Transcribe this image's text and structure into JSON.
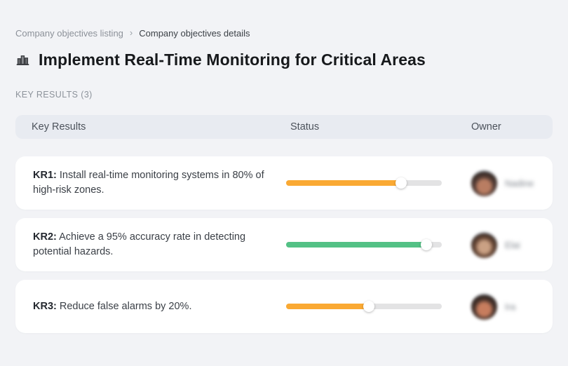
{
  "colors": {
    "page_background": "#F2F3F6",
    "table_header_background": "#E8EBF1",
    "row_background": "#FFFFFF",
    "track": "#E3E3E4",
    "orange": "#FAA933",
    "green": "#53C185"
  },
  "breadcrumb": {
    "listing_label": "Company objectives listing",
    "separator": "›",
    "details_label": "Company objectives details"
  },
  "page": {
    "title": "Implement Real-Time Monitoring for Critical Areas",
    "section_label": "KEY RESULTS (3)"
  },
  "table": {
    "headers": {
      "key_results": "Key Results",
      "status": "Status",
      "owner": "Owner"
    },
    "rows": [
      {
        "kr_label": "KR1:",
        "text": "Install real-time monitoring systems in 80% of high-risk zones.",
        "progress_percent": 74,
        "bar_color": "#FAA933",
        "owner_name": "Nadine",
        "owner_name_blurred": true
      },
      {
        "kr_label": "KR2:",
        "text": "Achieve a 95% accuracy rate in detecting potential hazards.",
        "progress_percent": 90,
        "bar_color": "#53C185",
        "owner_name": "Elai",
        "owner_name_blurred": true
      },
      {
        "kr_label": "KR3:",
        "text": "Reduce false alarms by 20%.",
        "progress_percent": 53,
        "bar_color": "#FAA933",
        "owner_name": "Ira",
        "owner_name_blurred": true
      }
    ]
  }
}
